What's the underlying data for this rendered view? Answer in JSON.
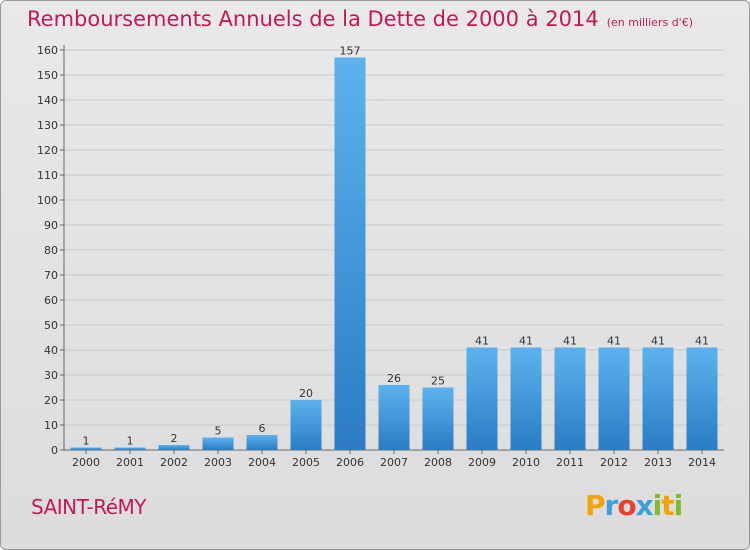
{
  "title": "Remboursements Annuels de la Dette de 2000 à 2014",
  "unit": "(en milliers d'€)",
  "commune": "SAINT-RéMY",
  "brand": {
    "letters": [
      "P",
      "r",
      "o",
      "x",
      "i",
      "t",
      "i"
    ],
    "colors": [
      "#f4a300",
      "#3aa0e0",
      "#e8402a",
      "#3aa0e0",
      "#7dbd2a",
      "#f4a300",
      "#7dbd2a"
    ]
  },
  "chart_data": {
    "type": "bar",
    "title": "Remboursements Annuels de la Dette de 2000 à 2014",
    "xlabel": "",
    "ylabel": "",
    "categories": [
      "2000",
      "2001",
      "2002",
      "2003",
      "2004",
      "2005",
      "2006",
      "2007",
      "2008",
      "2009",
      "2010",
      "2011",
      "2012",
      "2013",
      "2014"
    ],
    "values": [
      1,
      1,
      2,
      5,
      6,
      20,
      157,
      26,
      25,
      41,
      41,
      41,
      41,
      41,
      41
    ],
    "ylim": [
      0,
      160
    ],
    "yticks": [
      0,
      10,
      20,
      30,
      40,
      50,
      60,
      70,
      80,
      90,
      100,
      110,
      120,
      130,
      140,
      150,
      160
    ],
    "grid": true,
    "bar_color": "#3f9be0"
  }
}
